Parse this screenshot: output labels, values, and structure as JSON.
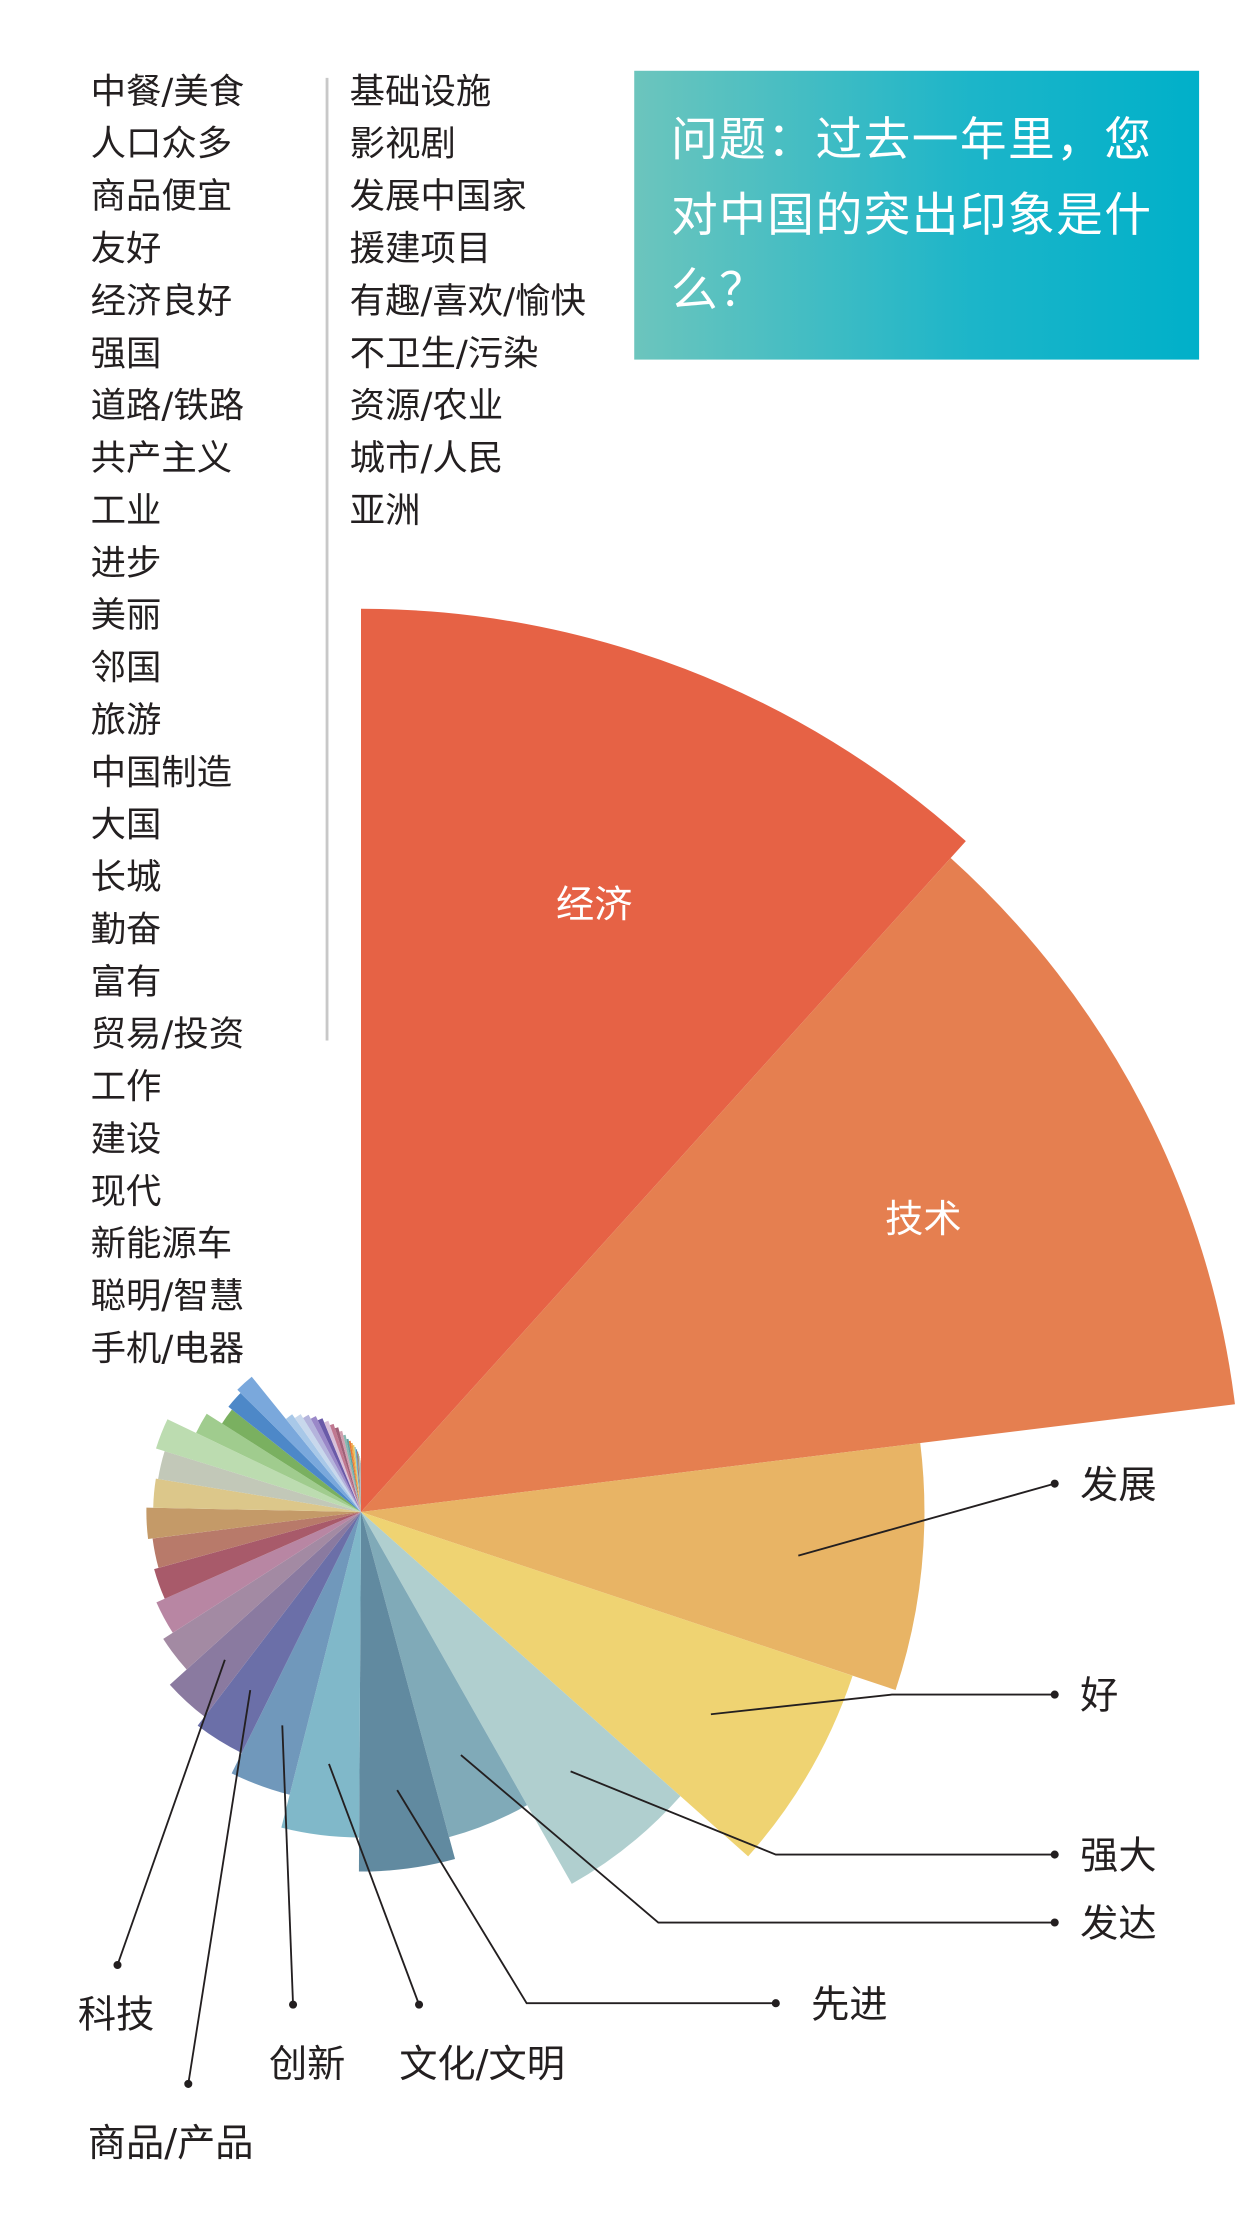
{
  "title": "问题：过去一年里，您对中国的突出印象是什么？",
  "legend": {
    "column1": [
      "中餐/美食",
      "人口众多",
      "商品便宜",
      "友好",
      "经济良好",
      "强国",
      "道路/铁路",
      "共产主义",
      "工业",
      "进步",
      "美丽",
      "邻国",
      "旅游",
      "中国制造",
      "大国",
      "长城",
      "勤奋",
      "富有",
      "贸易/投资",
      "工作",
      "建设",
      "现代",
      "新能源车",
      "聪明/智慧",
      "手机/电器"
    ],
    "column2": [
      "基础设施",
      "影视剧",
      "发展中国家",
      "援建项目",
      "有趣/喜欢/愉快",
      "不卫生/污染",
      "资源/农业",
      "城市/人民",
      "亚洲"
    ]
  },
  "chart_data": {
    "type": "pie",
    "subtype": "rose (radius and angle scale with value)",
    "title": "问题：过去一年里，您对中国的突出印象是什么？",
    "note_values": "relative estimates read from slice size; no numbers printed",
    "slices": [
      {
        "name": "经济",
        "value": 38,
        "color": "#e66245"
      },
      {
        "name": "技术",
        "value": 37,
        "color": "#e57f50"
      },
      {
        "name": "发展",
        "value": 23,
        "color": "#e8b465"
      },
      {
        "name": "好",
        "value": 21,
        "color": "#efd372"
      },
      {
        "name": "强大",
        "value": 17,
        "color": "#b0cfcf"
      },
      {
        "name": "发达",
        "value": 13,
        "color": "#80aab8"
      },
      {
        "name": "先进",
        "value": 14,
        "color": "#618aa0"
      },
      {
        "name": "文化/文明",
        "value": 12.5,
        "color": "#80b8c9"
      },
      {
        "name": "创新",
        "value": 11,
        "color": "#7098bb"
      },
      {
        "name": "商品/产品",
        "value": 10,
        "color": "#6b6fa8"
      },
      {
        "name": "科技",
        "value": 9.5,
        "color": "#8a7aa0"
      },
      {
        "name": "中餐/美食",
        "value": 8.5,
        "color": "#a38aa3"
      },
      {
        "name": "人口众多",
        "value": 8,
        "color": "#b886a3"
      },
      {
        "name": "商品便宜",
        "value": 7.6,
        "color": "#a85a6a"
      },
      {
        "name": "友好",
        "value": 7.4,
        "color": "#b87a6a"
      },
      {
        "name": "经济良好",
        "value": 7.6,
        "color": "#c49a68"
      },
      {
        "name": "强国",
        "value": 7.3,
        "color": "#dcc78a"
      },
      {
        "name": "道路/铁路",
        "value": 7.2,
        "color": "#c2c8b8"
      },
      {
        "name": "共产主义",
        "value": 7.6,
        "color": "#bcdcb0"
      },
      {
        "name": "工业",
        "value": 6.2,
        "color": "#a0cc8e"
      },
      {
        "name": "进步",
        "value": 5.4,
        "color": "#7ab060"
      },
      {
        "name": "美丽",
        "value": 5.6,
        "color": "#4d88c8"
      },
      {
        "name": "邻国",
        "value": 5.8,
        "color": "#7aa8dc"
      },
      {
        "name": "旅游",
        "value": 3.4,
        "color": "#a8c8e8"
      },
      {
        "name": "中国制造",
        "value": 3.2,
        "color": "#c8d8ec"
      },
      {
        "name": "大国",
        "value": 3.0,
        "color": "#b4b4dc"
      },
      {
        "name": "长城",
        "value": 2.8,
        "color": "#9a88c8"
      },
      {
        "name": "勤奋",
        "value": 2.6,
        "color": "#6a5aa8"
      },
      {
        "name": "富有",
        "value": 2.4,
        "color": "#d8c0d8"
      },
      {
        "name": "贸易/投资",
        "value": 2.2,
        "color": "#c07890"
      },
      {
        "name": "工作",
        "value": 2.0,
        "color": "#a06078"
      },
      {
        "name": "建设",
        "value": 1.8,
        "color": "#d0a0b0"
      },
      {
        "name": "现代",
        "value": 1.6,
        "color": "#88b8b0"
      },
      {
        "name": "新能源车",
        "value": 1.4,
        "color": "#60a0a0"
      },
      {
        "name": "聪明/智慧",
        "value": 1.3,
        "color": "#e87838"
      },
      {
        "name": "手机/电器",
        "value": 1.2,
        "color": "#f0a040"
      },
      {
        "name": "基础设施",
        "value": 1.1,
        "color": "#e8c860"
      },
      {
        "name": "影视剧",
        "value": 1.0,
        "color": "#90c0d0"
      },
      {
        "name": "发展中国家",
        "value": 0.9,
        "color": "#5890b0"
      },
      {
        "name": "援建项目",
        "value": 0.8,
        "color": "#c86858"
      },
      {
        "name": "有趣/喜欢/愉快",
        "value": 0.7,
        "color": "#7ab880"
      },
      {
        "name": "不卫生/污染",
        "value": 0.6,
        "color": "#b8a0c8"
      },
      {
        "name": "资源/农业",
        "value": 0.5,
        "color": "#d8b888"
      },
      {
        "name": "城市/人民",
        "value": 0.4,
        "color": "#a0a0a0"
      },
      {
        "name": "亚洲",
        "value": 0.3,
        "color": "#7088b8"
      }
    ],
    "labeled_slices": [
      "经济",
      "技术",
      "发展",
      "好",
      "强大",
      "发达",
      "先进",
      "文化/文明",
      "创新",
      "商品/产品",
      "科技"
    ]
  }
}
